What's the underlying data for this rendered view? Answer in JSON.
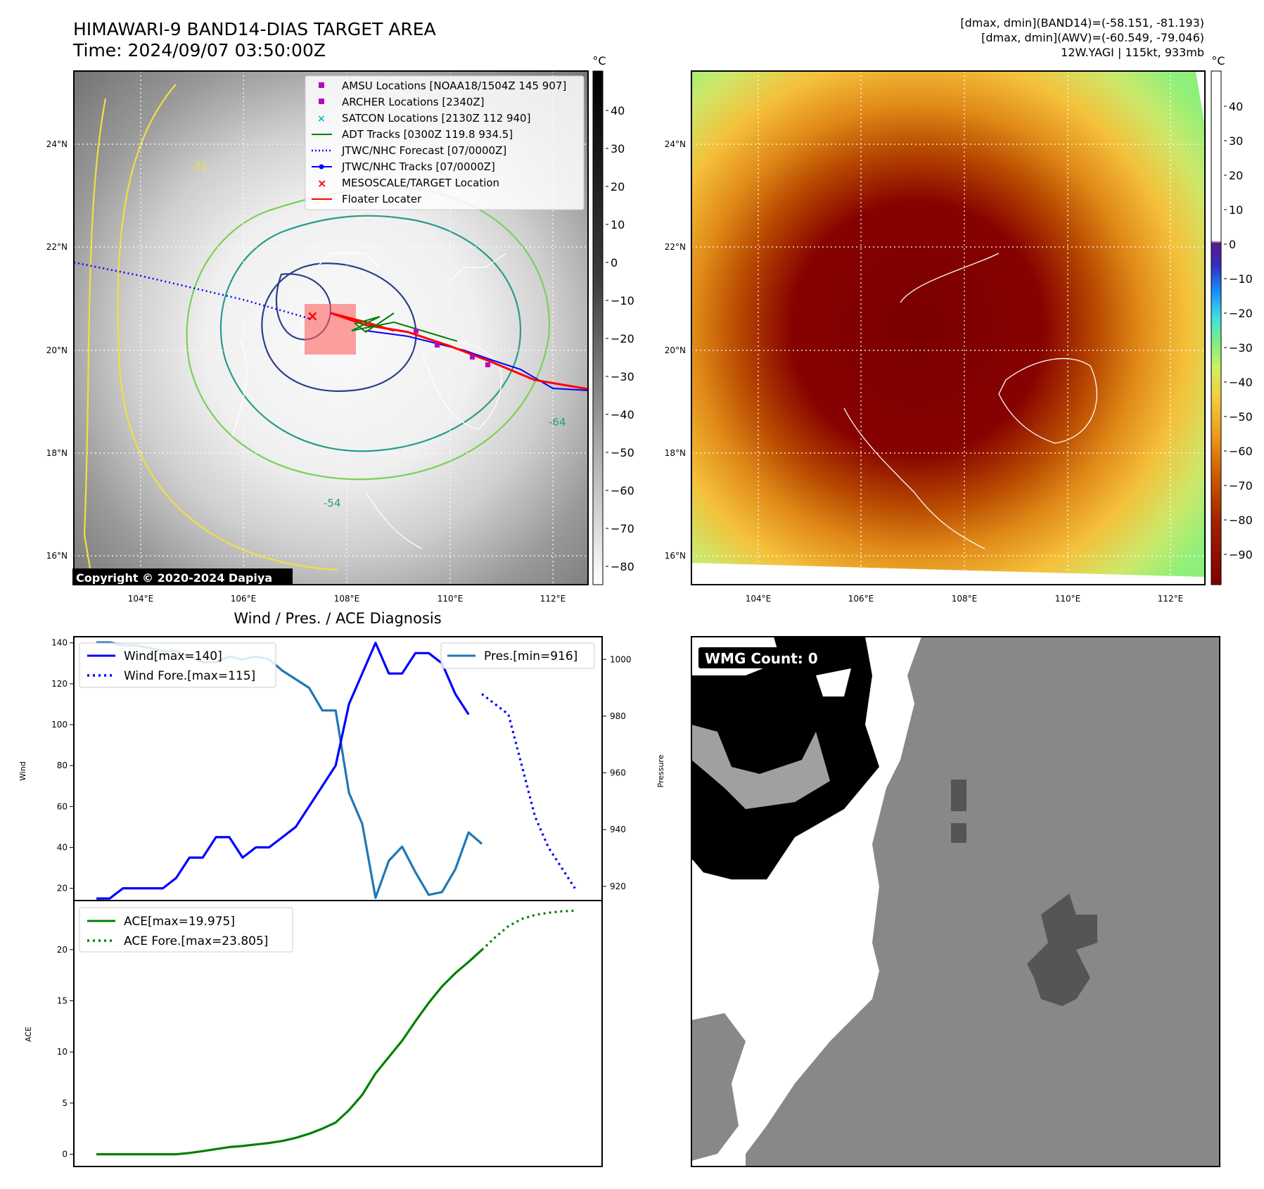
{
  "header": {
    "title_line1": "HIMAWARI-9 BAND14-DIAS TARGET AREA",
    "title_line2": "Time: 2024/09/07 03:50:00Z",
    "info_line1": "[dmax, dmin](BAND14)=(-58.151, -81.193)",
    "info_line2": "[dmax, dmin](AWV)=(-60.549, -79.046)",
    "info_line3": "12W.YAGI | 115kt, 933mb"
  },
  "maps": {
    "lat_ticks": [
      "24°N",
      "22°N",
      "20°N",
      "18°N",
      "16°N"
    ],
    "lon_ticks": [
      "104°E",
      "106°E",
      "108°E",
      "110°E",
      "112°E"
    ],
    "copyright": "Copyright © 2020-2024 Dapiya",
    "colorbar_unit": "°C",
    "ir_colorbar_ticks": [
      "40",
      "30",
      "20",
      "10",
      "0",
      "−10",
      "−20",
      "−30",
      "−40",
      "−50",
      "−60",
      "−70",
      "−80"
    ],
    "awv_colorbar_ticks": [
      "40",
      "30",
      "20",
      "10",
      "0",
      "−10",
      "−20",
      "−30",
      "−40",
      "−50",
      "−60",
      "−70",
      "−80",
      "−90"
    ],
    "contour_labels": [
      "-31",
      "-54",
      "-64",
      "-31",
      "-64"
    ],
    "legend": [
      {
        "label": "AMSU Locations [NOAA18/1504Z 145 907]",
        "color": "#c000c0",
        "marker": "square"
      },
      {
        "label": "ARCHER Locations [2340Z]",
        "color": "#c000c0",
        "marker": "square"
      },
      {
        "label": "SATCON Locations [2130Z 112 940]",
        "color": "#00c0c0",
        "marker": "x"
      },
      {
        "label": "ADT Tracks [0300Z 119.8 934.5]",
        "color": "#008000",
        "marker": "line"
      },
      {
        "label": "JTWC/NHC Forecast [07/0000Z]",
        "color": "#0000ff",
        "marker": "dotted"
      },
      {
        "label": "JTWC/NHC Tracks [07/0000Z]",
        "color": "#0000ff",
        "marker": "line-dot"
      },
      {
        "label": "MESOSCALE/TARGET Location",
        "color": "#ff0000",
        "marker": "x"
      },
      {
        "label": "Floater Locater",
        "color": "#ff0000",
        "marker": "line"
      }
    ]
  },
  "diagnosis": {
    "title": "Wind / Pres. / ACE Diagnosis",
    "wind_ylabel": "Wind",
    "pres_ylabel": "Pressure",
    "ace_ylabel": "ACE",
    "wind_ticks": [
      "20",
      "40",
      "60",
      "80",
      "100",
      "120",
      "140"
    ],
    "pres_ticks": [
      "920",
      "940",
      "960",
      "980",
      "1000"
    ],
    "ace_ticks": [
      "0",
      "5",
      "10",
      "15",
      "20"
    ],
    "legend_wind": "Wind[max=140]",
    "legend_wind_fore": "Wind Fore.[max=115]",
    "legend_pres": "Pres.[min=916]",
    "legend_ace": "ACE[max=19.975]",
    "legend_ace_fore": "ACE Fore.[max=23.805]"
  },
  "wmg": {
    "count_label": "WMG Count: 0"
  },
  "chart_data": [
    {
      "type": "line",
      "title": "Wind / Pres. / ACE Diagnosis",
      "ylabel": "Wind",
      "ylim": [
        14,
        143
      ],
      "series": [
        {
          "name": "Wind[max=140]",
          "color": "#0000ff",
          "style": "solid",
          "x": [
            0,
            1,
            2,
            3,
            4,
            5,
            6,
            7,
            8,
            9,
            10,
            11,
            12,
            13,
            14,
            15,
            16,
            17,
            18,
            19,
            20,
            21,
            22,
            23,
            24,
            25,
            26,
            27,
            28
          ],
          "values": [
            15,
            15,
            20,
            20,
            20,
            20,
            25,
            35,
            35,
            45,
            45,
            35,
            40,
            40,
            45,
            50,
            60,
            70,
            80,
            110,
            125,
            140,
            125,
            125,
            135,
            135,
            130,
            115,
            105
          ]
        },
        {
          "name": "Wind Fore.[max=115]",
          "color": "#0000ff",
          "style": "dotted",
          "x": [
            29,
            30,
            31,
            32,
            33,
            34,
            35,
            36
          ],
          "values": [
            115,
            110,
            105,
            80,
            55,
            40,
            30,
            20
          ]
        }
      ]
    },
    {
      "type": "line",
      "ylabel": "Pressure",
      "ylim": [
        915,
        1008
      ],
      "series": [
        {
          "name": "Pres.[min=916]",
          "color": "#1f77b4",
          "style": "solid",
          "x": [
            0,
            1,
            2,
            3,
            4,
            5,
            6,
            7,
            8,
            9,
            10,
            11,
            12,
            13,
            14,
            15,
            16,
            17,
            18,
            19,
            20,
            21,
            22,
            23,
            24,
            25,
            26,
            27,
            28,
            29
          ],
          "values": [
            1006,
            1006,
            1005,
            1005,
            1004,
            1003,
            1003,
            1001,
            999,
            999,
            1001,
            1000,
            1001,
            1000,
            996,
            993,
            990,
            982,
            982,
            953,
            942,
            916,
            929,
            934,
            925,
            917,
            918,
            926,
            939,
            935
          ]
        }
      ]
    },
    {
      "type": "line",
      "ylabel": "ACE",
      "ylim": [
        -1.2,
        24.8
      ],
      "series": [
        {
          "name": "ACE[max=19.975]",
          "color": "#008000",
          "style": "solid",
          "x": [
            0,
            1,
            2,
            3,
            4,
            5,
            6,
            7,
            8,
            9,
            10,
            11,
            12,
            13,
            14,
            15,
            16,
            17,
            18,
            19,
            20,
            21,
            22,
            23,
            24,
            25,
            26,
            27,
            28,
            29
          ],
          "values": [
            0,
            0,
            0,
            0,
            0,
            0,
            0,
            0.12,
            0.3,
            0.5,
            0.7,
            0.8,
            0.95,
            1.1,
            1.3,
            1.6,
            2.0,
            2.5,
            3.1,
            4.3,
            5.8,
            7.9,
            9.5,
            11.1,
            13.0,
            14.8,
            16.4,
            17.7,
            18.8,
            19.975
          ]
        },
        {
          "name": "ACE Fore.[max=23.805]",
          "color": "#008000",
          "style": "dotted",
          "x": [
            29,
            30,
            31,
            32,
            33,
            34,
            35,
            36
          ],
          "values": [
            19.975,
            21.2,
            22.3,
            23.0,
            23.4,
            23.6,
            23.75,
            23.805
          ]
        }
      ]
    }
  ]
}
